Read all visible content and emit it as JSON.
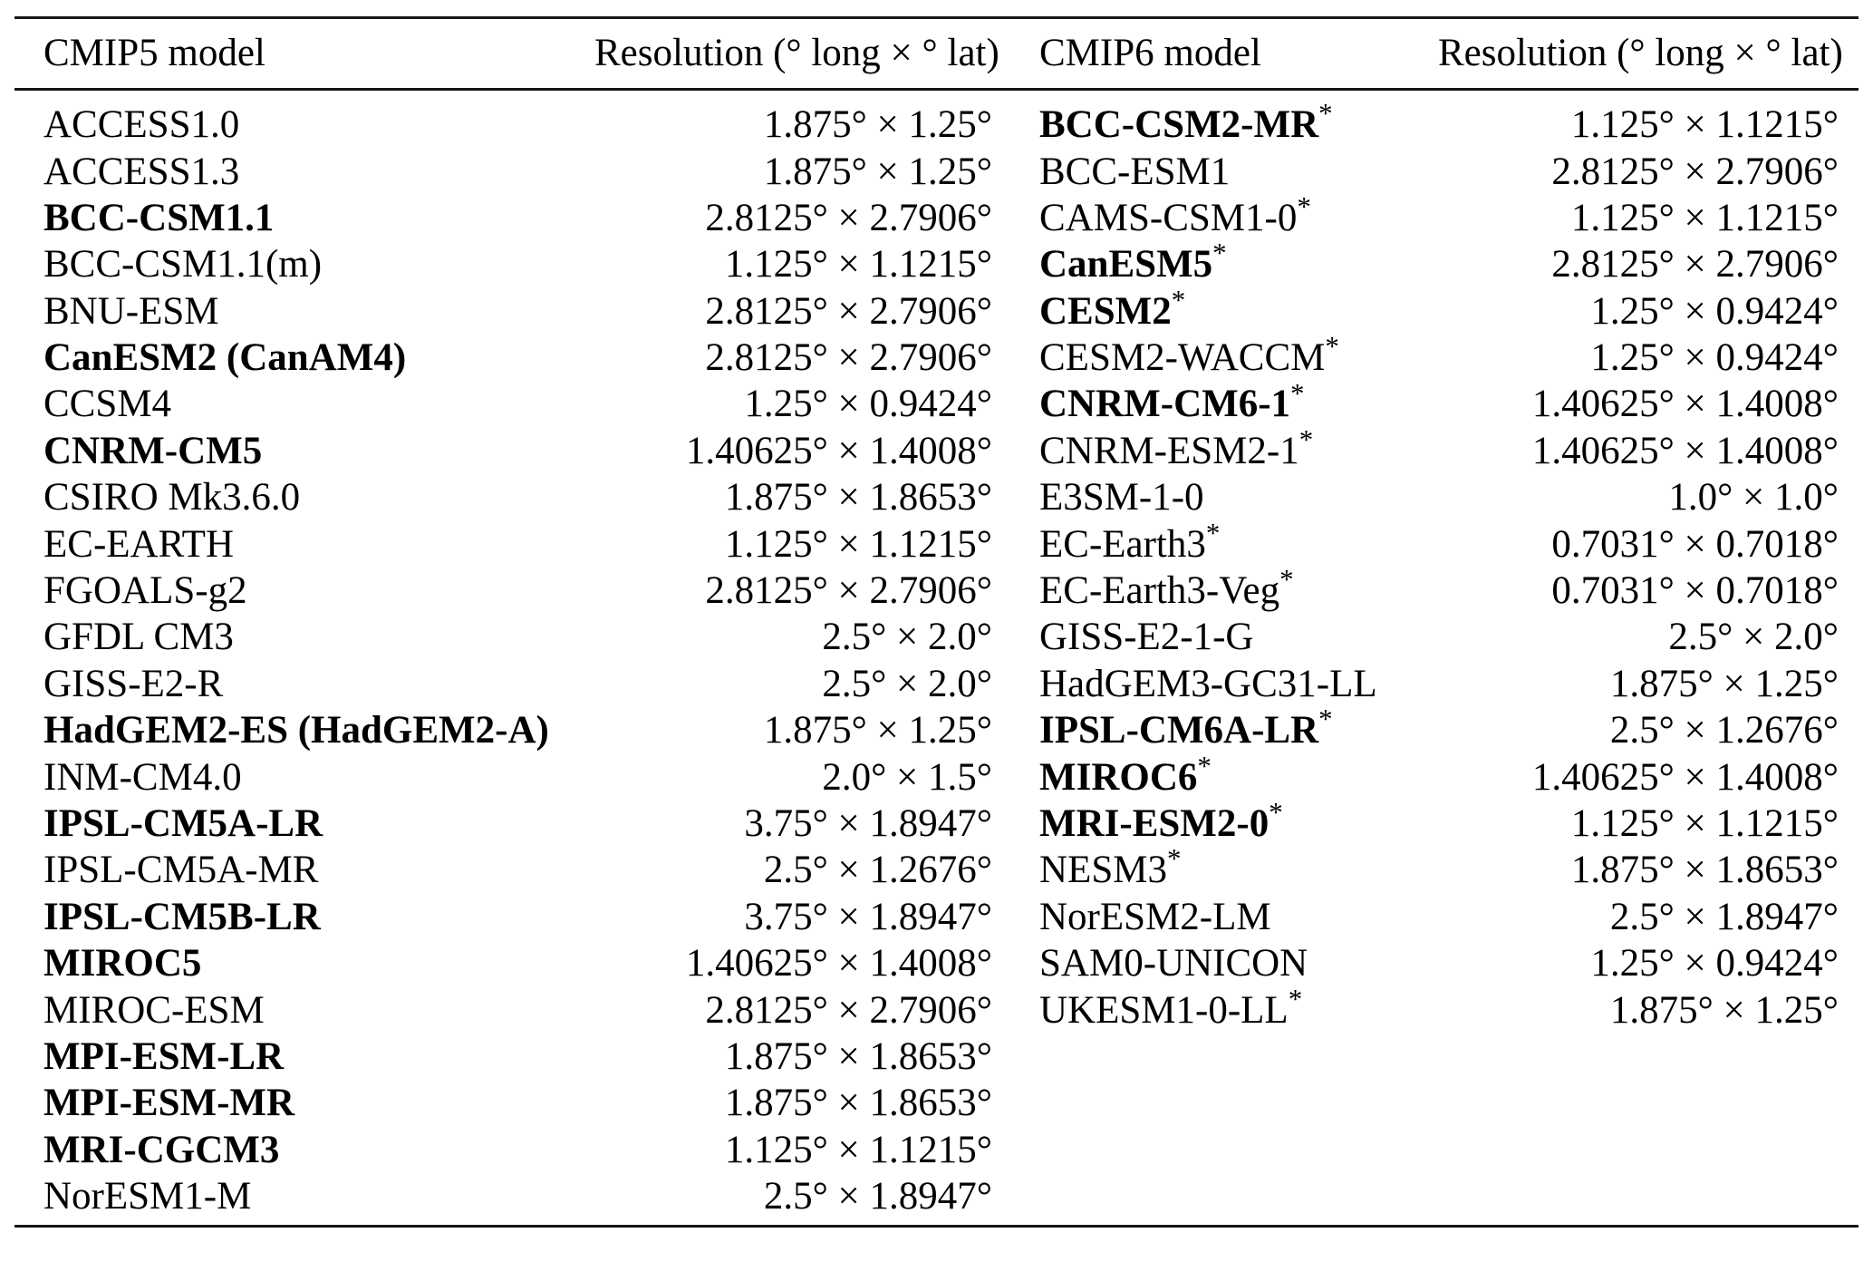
{
  "table": {
    "headers": {
      "cmip5_model": "CMIP5 model",
      "cmip5_resolution": "Resolution (° long × ° lat)",
      "cmip6_model": "CMIP6 model",
      "cmip6_resolution": "Resolution (° long × ° lat)"
    },
    "rows": [
      {
        "cmip5": {
          "model": "ACCESS1.0",
          "bold": false,
          "star": false,
          "resolution": "1.875° × 1.25°"
        },
        "cmip6": {
          "model": "BCC-CSM2-MR",
          "bold": true,
          "star": true,
          "resolution": "1.125° × 1.1215°"
        }
      },
      {
        "cmip5": {
          "model": "ACCESS1.3",
          "bold": false,
          "star": false,
          "resolution": "1.875° × 1.25°"
        },
        "cmip6": {
          "model": "BCC-ESM1",
          "bold": false,
          "star": false,
          "resolution": "2.8125° × 2.7906°"
        }
      },
      {
        "cmip5": {
          "model": "BCC-CSM1.1",
          "bold": true,
          "star": false,
          "resolution": "2.8125° × 2.7906°"
        },
        "cmip6": {
          "model": "CAMS-CSM1-0",
          "bold": false,
          "star": true,
          "resolution": "1.125° × 1.1215°"
        }
      },
      {
        "cmip5": {
          "model": "BCC-CSM1.1(m)",
          "bold": false,
          "star": false,
          "resolution": "1.125° × 1.1215°"
        },
        "cmip6": {
          "model": "CanESM5",
          "bold": true,
          "star": true,
          "resolution": "2.8125° × 2.7906°"
        }
      },
      {
        "cmip5": {
          "model": "BNU-ESM",
          "bold": false,
          "star": false,
          "resolution": "2.8125° × 2.7906°"
        },
        "cmip6": {
          "model": "CESM2",
          "bold": true,
          "star": true,
          "resolution": "1.25° × 0.9424°"
        }
      },
      {
        "cmip5": {
          "model": "CanESM2 (CanAM4)",
          "bold": true,
          "star": false,
          "resolution": "2.8125° × 2.7906°"
        },
        "cmip6": {
          "model": "CESM2-WACCM",
          "bold": false,
          "star": true,
          "resolution": "1.25° × 0.9424°"
        }
      },
      {
        "cmip5": {
          "model": "CCSM4",
          "bold": false,
          "star": false,
          "resolution": "1.25° × 0.9424°"
        },
        "cmip6": {
          "model": "CNRM-CM6-1",
          "bold": true,
          "star": true,
          "resolution": "1.40625° × 1.4008°"
        }
      },
      {
        "cmip5": {
          "model": "CNRM-CM5",
          "bold": true,
          "star": false,
          "resolution": "1.40625° × 1.4008°"
        },
        "cmip6": {
          "model": "CNRM-ESM2-1",
          "bold": false,
          "star": true,
          "resolution": "1.40625° × 1.4008°"
        }
      },
      {
        "cmip5": {
          "model": "CSIRO Mk3.6.0",
          "bold": false,
          "star": false,
          "resolution": "1.875° × 1.8653°"
        },
        "cmip6": {
          "model": "E3SM-1-0",
          "bold": false,
          "star": false,
          "resolution": "1.0° × 1.0°"
        }
      },
      {
        "cmip5": {
          "model": "EC-EARTH",
          "bold": false,
          "star": false,
          "resolution": "1.125° × 1.1215°"
        },
        "cmip6": {
          "model": "EC-Earth3",
          "bold": false,
          "star": true,
          "resolution": "0.7031° × 0.7018°"
        }
      },
      {
        "cmip5": {
          "model": "FGOALS-g2",
          "bold": false,
          "star": false,
          "resolution": "2.8125° × 2.7906°"
        },
        "cmip6": {
          "model": "EC-Earth3-Veg",
          "bold": false,
          "star": true,
          "resolution": "0.7031° × 0.7018°"
        }
      },
      {
        "cmip5": {
          "model": "GFDL CM3",
          "bold": false,
          "star": false,
          "resolution": "2.5° × 2.0°"
        },
        "cmip6": {
          "model": "GISS-E2-1-G",
          "bold": false,
          "star": false,
          "resolution": "2.5° × 2.0°"
        }
      },
      {
        "cmip5": {
          "model": "GISS-E2-R",
          "bold": false,
          "star": false,
          "resolution": "2.5° × 2.0°"
        },
        "cmip6": {
          "model": "HadGEM3-GC31-LL",
          "bold": false,
          "star": false,
          "resolution": "1.875° × 1.25°"
        }
      },
      {
        "cmip5": {
          "model": "HadGEM2-ES (HadGEM2-A)",
          "bold": true,
          "star": false,
          "resolution": "1.875° × 1.25°"
        },
        "cmip6": {
          "model": "IPSL-CM6A-LR",
          "bold": true,
          "star": true,
          "resolution": "2.5° × 1.2676°"
        }
      },
      {
        "cmip5": {
          "model": "INM-CM4.0",
          "bold": false,
          "star": false,
          "resolution": "2.0° × 1.5°"
        },
        "cmip6": {
          "model": "MIROC6",
          "bold": true,
          "star": true,
          "resolution": "1.40625° × 1.4008°"
        }
      },
      {
        "cmip5": {
          "model": "IPSL-CM5A-LR",
          "bold": true,
          "star": false,
          "resolution": "3.75° × 1.8947°"
        },
        "cmip6": {
          "model": "MRI-ESM2-0",
          "bold": true,
          "star": true,
          "resolution": "1.125° × 1.1215°"
        }
      },
      {
        "cmip5": {
          "model": "IPSL-CM5A-MR",
          "bold": false,
          "star": false,
          "resolution": "2.5° × 1.2676°"
        },
        "cmip6": {
          "model": "NESM3",
          "bold": false,
          "star": true,
          "resolution": "1.875° × 1.8653°"
        }
      },
      {
        "cmip5": {
          "model": "IPSL-CM5B-LR",
          "bold": true,
          "star": false,
          "resolution": "3.75° × 1.8947°"
        },
        "cmip6": {
          "model": "NorESM2-LM",
          "bold": false,
          "star": false,
          "resolution": "2.5° × 1.8947°"
        }
      },
      {
        "cmip5": {
          "model": "MIROC5",
          "bold": true,
          "star": false,
          "resolution": "1.40625° × 1.4008°"
        },
        "cmip6": {
          "model": "SAM0-UNICON",
          "bold": false,
          "star": false,
          "resolution": "1.25° × 0.9424°"
        }
      },
      {
        "cmip5": {
          "model": "MIROC-ESM",
          "bold": false,
          "star": false,
          "resolution": "2.8125° × 2.7906°"
        },
        "cmip6": {
          "model": "UKESM1-0-LL",
          "bold": false,
          "star": true,
          "resolution": "1.875° × 1.25°"
        }
      },
      {
        "cmip5": {
          "model": "MPI-ESM-LR",
          "bold": true,
          "star": false,
          "resolution": "1.875° × 1.8653°"
        },
        "cmip6": null
      },
      {
        "cmip5": {
          "model": "MPI-ESM-MR",
          "bold": true,
          "star": false,
          "resolution": "1.875° × 1.8653°"
        },
        "cmip6": null
      },
      {
        "cmip5": {
          "model": "MRI-CGCM3",
          "bold": true,
          "star": false,
          "resolution": "1.125° × 1.1215°"
        },
        "cmip6": null
      },
      {
        "cmip5": {
          "model": "NorESM1-M",
          "bold": false,
          "star": false,
          "resolution": "2.5° × 1.8947°"
        },
        "cmip6": null
      }
    ]
  }
}
